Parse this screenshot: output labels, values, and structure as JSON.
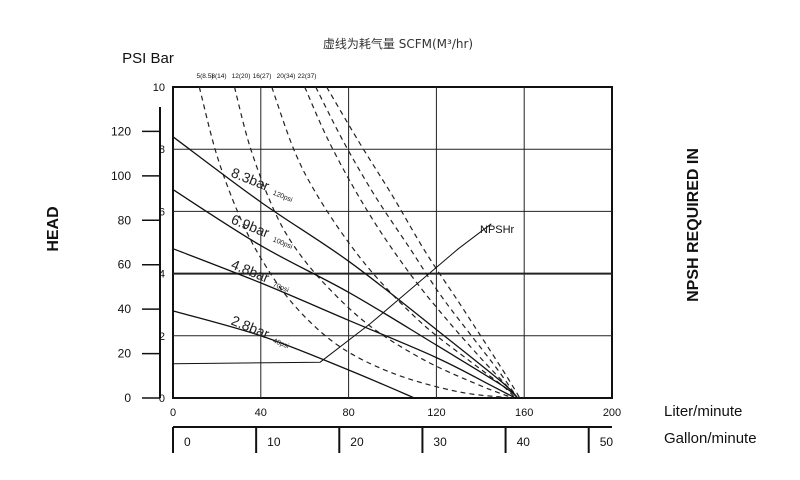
{
  "chart_data": {
    "type": "line",
    "title": "虚线为耗气量 SCFM(M³/hr)",
    "x_primary": {
      "label": "Liter/minute",
      "ticks": [
        "0",
        "40",
        "80",
        "120",
        "160",
        "200"
      ],
      "range": [
        0,
        200
      ]
    },
    "x_secondary": {
      "label": "Gallon/minute",
      "ticks": [
        "0",
        "10",
        "20",
        "30",
        "40",
        "50"
      ],
      "range": [
        0,
        52.8
      ]
    },
    "y_left": {
      "label": "HEAD",
      "unit_label": "PSI Bar",
      "psi_ticks": [
        "0",
        "20",
        "40",
        "60",
        "80",
        "100",
        "120"
      ],
      "psi_range": [
        0,
        140
      ],
      "bar_ticks": [
        "0",
        "2",
        "4",
        "6",
        "8",
        "10"
      ],
      "bar_range": [
        0,
        10
      ]
    },
    "y_right": {
      "label": "NPSH REQUIRED IN"
    },
    "grid": true,
    "air_consumption_labels": [
      "5(8.5)",
      "8(14)",
      "12(20)",
      "16(27)",
      "20(34)",
      "22(37)"
    ],
    "series": [
      {
        "name": "8.3bar",
        "sub": "120psi",
        "x": [
          0,
          40,
          80,
          120,
          150,
          157
        ],
        "y": [
          8.4,
          6.3,
          4.4,
          2.2,
          0.5,
          0
        ]
      },
      {
        "name": "6.9bar",
        "sub": "100psi",
        "x": [
          0,
          40,
          80,
          120,
          150,
          157
        ],
        "y": [
          6.7,
          4.9,
          3.4,
          1.7,
          0.4,
          0
        ]
      },
      {
        "name": "4.8bar",
        "sub": "70psi",
        "x": [
          0,
          40,
          80,
          120,
          145,
          156
        ],
        "y": [
          4.8,
          3.7,
          2.5,
          1.3,
          0.4,
          0
        ]
      },
      {
        "name": "2.8bar",
        "sub": "40psi",
        "x": [
          0,
          40,
          80,
          110
        ],
        "y": [
          2.8,
          2.0,
          0.9,
          0
        ]
      }
    ],
    "air_consumption_curves": [
      {
        "x": [
          12,
          20,
          30,
          40,
          55,
          75,
          100,
          130,
          155
        ],
        "y": [
          10,
          7.8,
          5.9,
          4.5,
          3.0,
          1.7,
          0.8,
          0.2,
          0
        ]
      },
      {
        "x": [
          28,
          35,
          45,
          55,
          70,
          90,
          115,
          140,
          155
        ],
        "y": [
          10,
          8.1,
          6.2,
          4.9,
          3.6,
          2.3,
          1.2,
          0.4,
          0
        ]
      },
      {
        "x": [
          45,
          55,
          65,
          80,
          95,
          115,
          135,
          150,
          156
        ],
        "y": [
          10,
          8.0,
          6.6,
          5.0,
          3.7,
          2.3,
          1.2,
          0.4,
          0
        ]
      },
      {
        "x": [
          60,
          70,
          82,
          95,
          110,
          125,
          140,
          152,
          157
        ],
        "y": [
          10,
          8.4,
          6.8,
          5.3,
          3.8,
          2.5,
          1.3,
          0.4,
          0
        ]
      },
      {
        "x": [
          65,
          78,
          92,
          108,
          122,
          136,
          148,
          157
        ],
        "y": [
          10,
          8.2,
          6.5,
          4.8,
          3.3,
          2.0,
          0.9,
          0
        ]
      },
      {
        "x": [
          70,
          85,
          100,
          115,
          130,
          142,
          152,
          158
        ],
        "y": [
          10,
          8.2,
          6.5,
          4.7,
          3.1,
          1.8,
          0.7,
          0
        ]
      }
    ],
    "npsh": {
      "name": "NPSHr",
      "x": [
        0,
        67,
        90,
        110,
        130,
        145
      ],
      "y": [
        1.1,
        1.15,
        2.4,
        3.6,
        4.8,
        5.6
      ]
    }
  }
}
